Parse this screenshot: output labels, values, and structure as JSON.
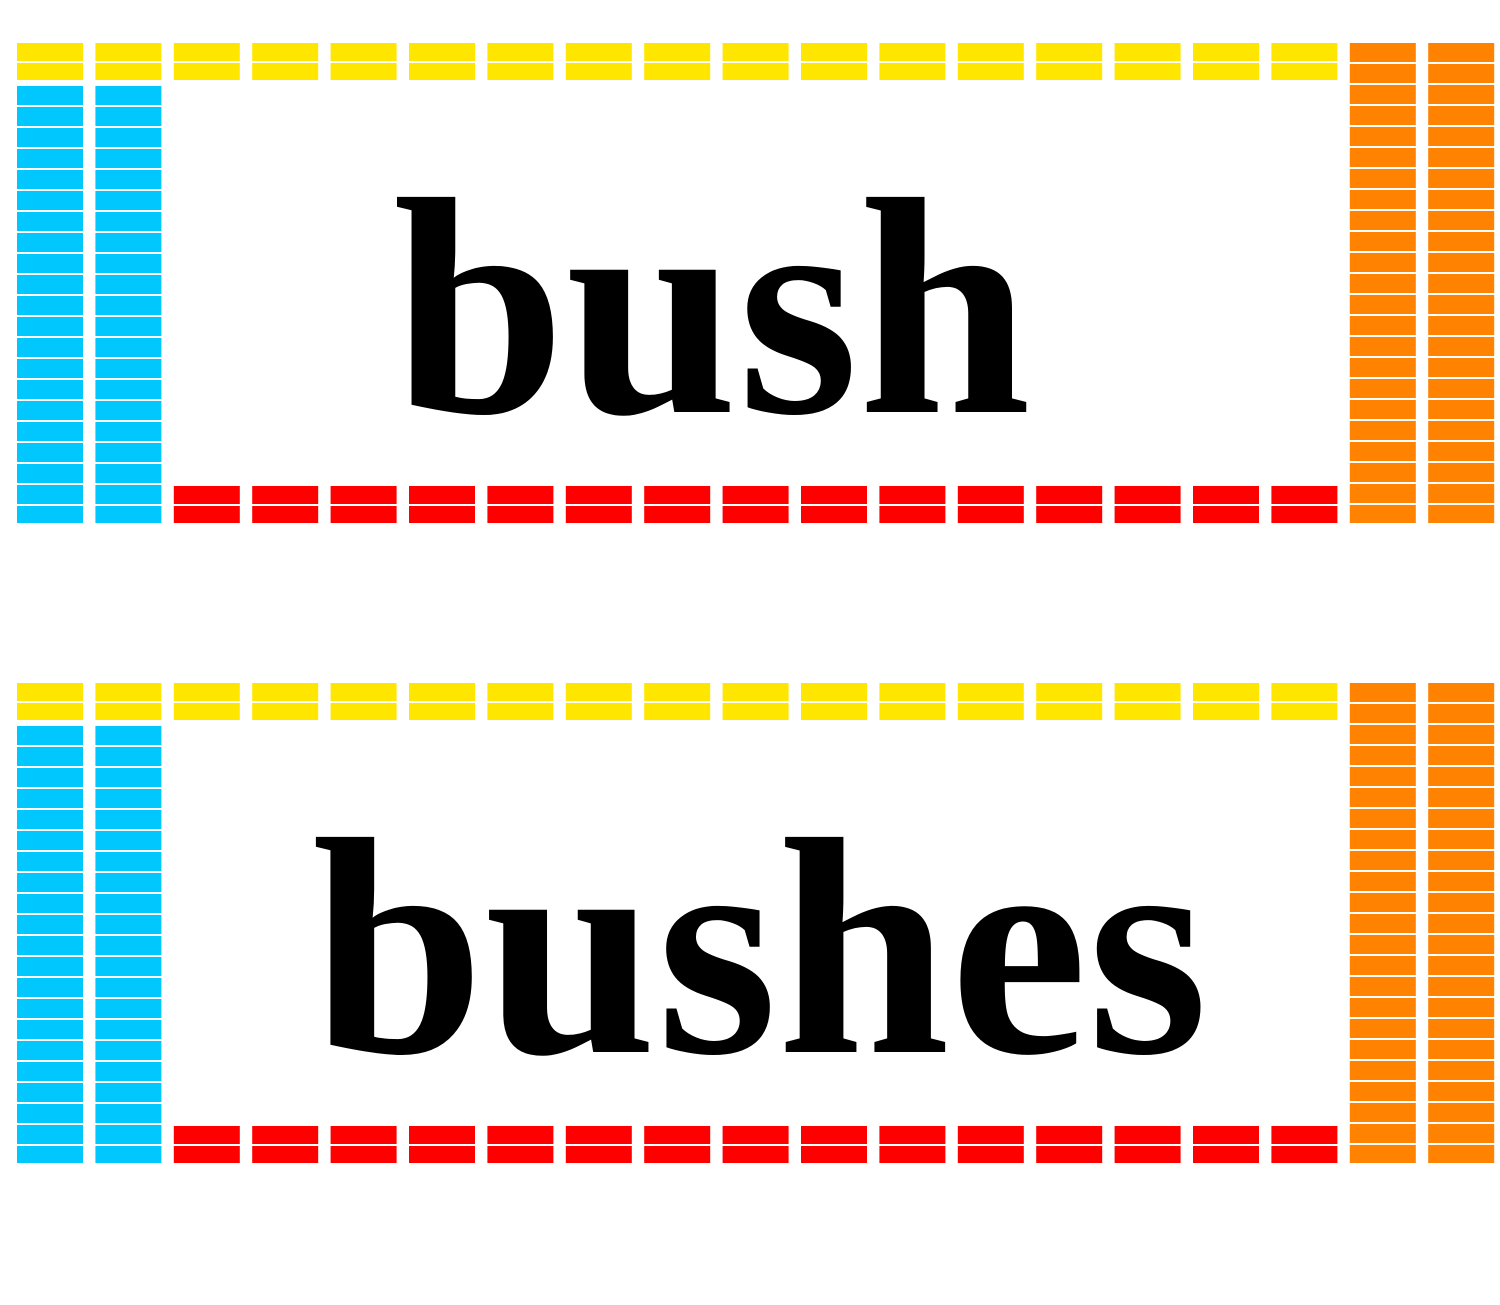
{
  "cards": [
    {
      "word": "bush"
    },
    {
      "word": "bushes"
    }
  ]
}
